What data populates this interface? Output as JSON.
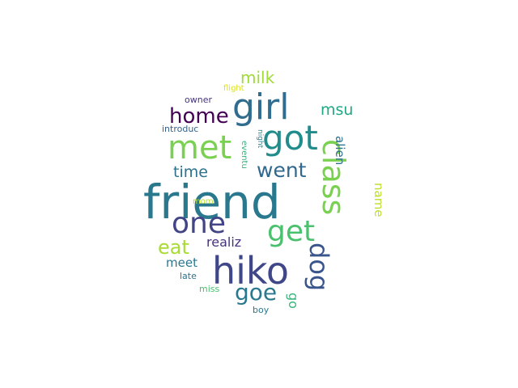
{
  "wordcloud": {
    "words": [
      {
        "text": "friend",
        "color": "#2a788e"
      },
      {
        "text": "hiko",
        "color": "#3f4788"
      },
      {
        "text": "girl",
        "color": "#2f6c8e"
      },
      {
        "text": "got",
        "color": "#228c8d"
      },
      {
        "text": "met",
        "color": "#7ad151"
      },
      {
        "text": "class",
        "color": "#7ad151"
      },
      {
        "text": "one",
        "color": "#414487"
      },
      {
        "text": "get",
        "color": "#4ac16d"
      },
      {
        "text": "home",
        "color": "#440154"
      },
      {
        "text": "went",
        "color": "#31688e"
      },
      {
        "text": "goe",
        "color": "#2a788e"
      },
      {
        "text": "dog",
        "color": "#39558c"
      },
      {
        "text": "eat",
        "color": "#a8db34"
      },
      {
        "text": "milk",
        "color": "#a0da39"
      },
      {
        "text": "time",
        "color": "#2c728e"
      },
      {
        "text": "msu",
        "color": "#22a884"
      },
      {
        "text": "meet",
        "color": "#2a788e"
      },
      {
        "text": "realiz",
        "color": "#46327e"
      },
      {
        "text": "alien",
        "color": "#2c728e"
      },
      {
        "text": "name",
        "color": "#bddf26"
      },
      {
        "text": "go",
        "color": "#35b779"
      },
      {
        "text": "introduc",
        "color": "#33638d"
      },
      {
        "text": "owner",
        "color": "#46337e"
      },
      {
        "text": "flight",
        "color": "#dde318"
      },
      {
        "text": "eventu",
        "color": "#2db27d"
      },
      {
        "text": "night",
        "color": "#26828e"
      },
      {
        "text": "mom",
        "color": "#bddf26"
      },
      {
        "text": "late",
        "color": "#2c728e"
      },
      {
        "text": "miss",
        "color": "#4ac16d"
      },
      {
        "text": "boy",
        "color": "#2a788e"
      }
    ]
  }
}
